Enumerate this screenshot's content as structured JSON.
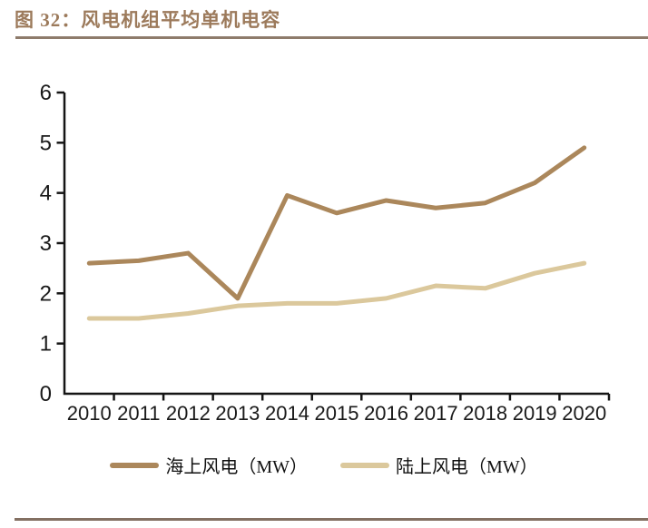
{
  "header": {
    "title": "图 32：风电机组平均单机电容"
  },
  "colors": {
    "title_text": "#9C7A5B",
    "rule_top": "#8E7B6B",
    "rule_bottom": "#837062",
    "axis": "#151515",
    "tick_label": "#1a1a1a",
    "offshore_line": "#AB875B",
    "onshore_line": "#DBC89C"
  },
  "chart_data": {
    "type": "line",
    "title": "风电机组平均单机电容",
    "categories": [
      "2010",
      "2011",
      "2012",
      "2013",
      "2014",
      "2015",
      "2016",
      "2017",
      "2018",
      "2019",
      "2020"
    ],
    "series": [
      {
        "name": "海上风电（MW）",
        "key": "offshore",
        "color": "#AB875B",
        "values": [
          2.6,
          2.65,
          2.8,
          1.9,
          3.95,
          3.6,
          3.85,
          3.7,
          3.8,
          4.2,
          4.9
        ]
      },
      {
        "name": "陆上风电（MW）",
        "key": "onshore",
        "color": "#DBC89C",
        "values": [
          1.5,
          1.5,
          1.6,
          1.75,
          1.8,
          1.8,
          1.9,
          2.15,
          2.1,
          2.4,
          2.6
        ]
      }
    ],
    "xlabel": "",
    "ylabel": "",
    "ylim": [
      0,
      6
    ],
    "ytick_step": 1,
    "grid": false,
    "legend_position": "bottom"
  }
}
